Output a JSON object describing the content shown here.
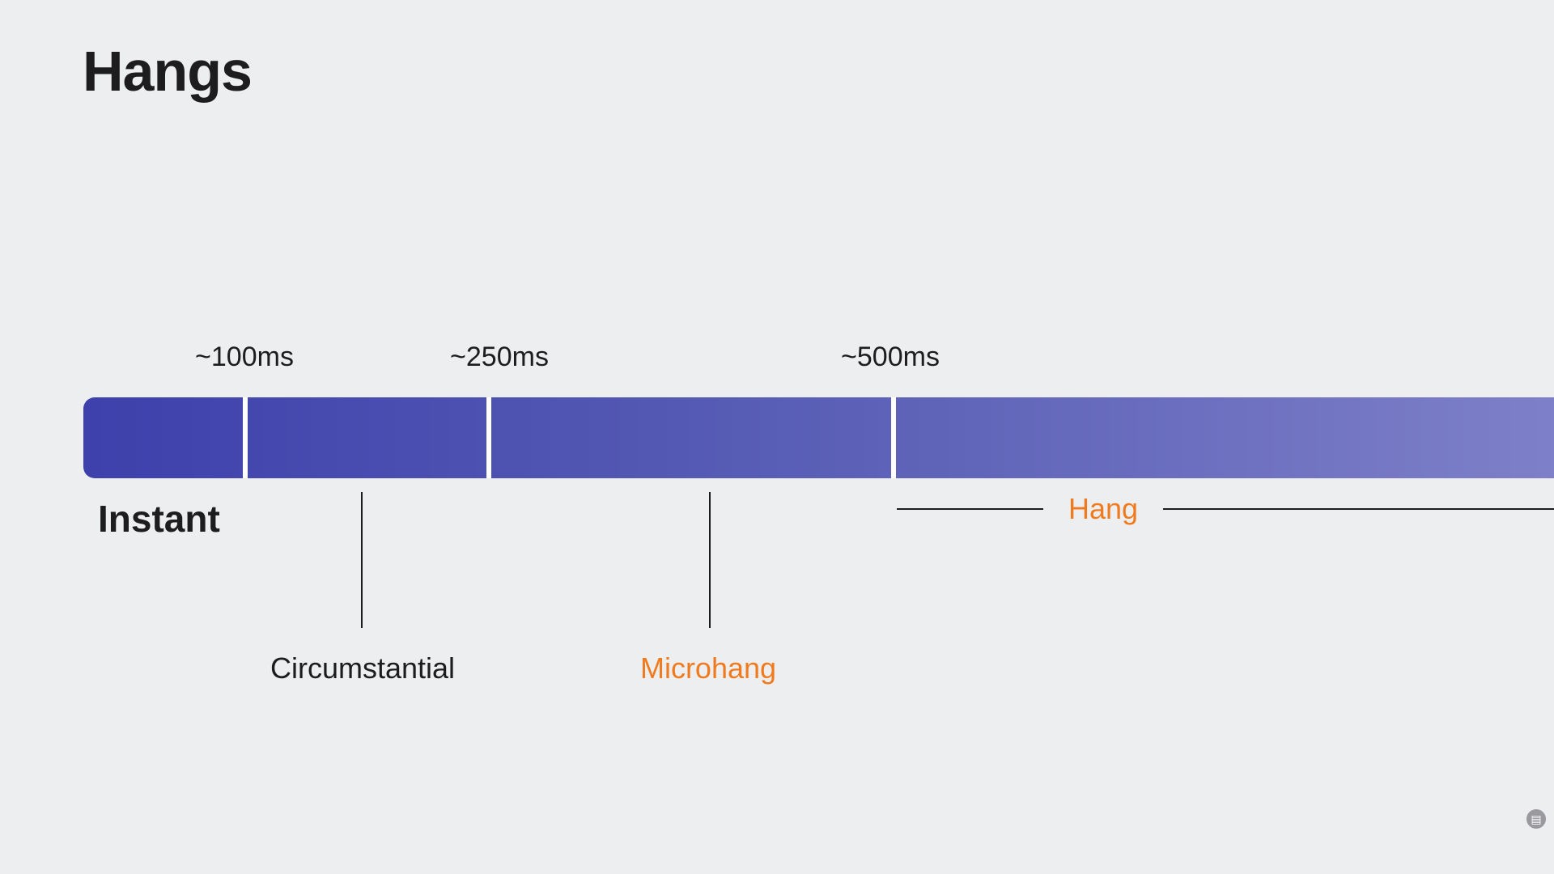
{
  "title": "Hangs",
  "thresholds": [
    "~100ms",
    "~250ms",
    "~500ms"
  ],
  "labels": {
    "instant": "Instant",
    "circumstantial": "Circumstantial",
    "microhang": "Microhang",
    "hang": "Hang"
  },
  "colors": {
    "bar_start": "#3e40ac",
    "bar_end": "#7e80c8",
    "highlight": "#f07b1e",
    "text": "#1d1d1f",
    "background": "#edeef0"
  },
  "icons": {
    "corner": "caption-icon"
  }
}
